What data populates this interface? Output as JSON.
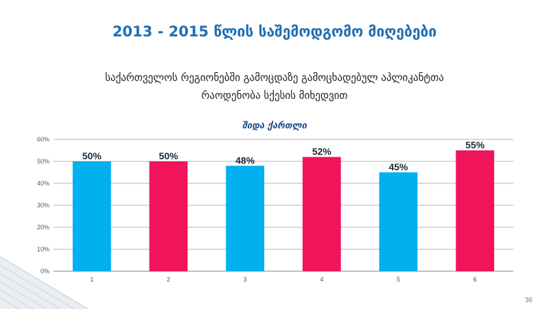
{
  "slide": {
    "title": "2013 - 2015 წლის საშემოდგომო მიღებები",
    "subtitle_line1": "საქართველოს რეგიონებში გამოცდაზე გამოცხადებულ აპლიკანტთა",
    "subtitle_line2": "რაოდენობა სქესის მიხედვით",
    "page_number": "36"
  },
  "chart_data": {
    "type": "bar",
    "title": "შიდა ქართლი",
    "categories": [
      "1",
      "2",
      "3",
      "4",
      "5",
      "6"
    ],
    "values": [
      50,
      50,
      48,
      52,
      45,
      55
    ],
    "data_labels": [
      "50%",
      "50%",
      "48%",
      "52%",
      "45%",
      "55%"
    ],
    "bar_colors": [
      "#00b0ef",
      "#f0145a",
      "#00b0ef",
      "#f0145a",
      "#00b0ef",
      "#f0145a"
    ],
    "ylim": [
      0,
      60
    ],
    "yticks": [
      0,
      10,
      20,
      30,
      40,
      50,
      60
    ],
    "ytick_labels": [
      "0%",
      "10%",
      "20%",
      "30%",
      "40%",
      "50%",
      "60%"
    ],
    "grid": true,
    "xlabel": "",
    "ylabel": ""
  }
}
